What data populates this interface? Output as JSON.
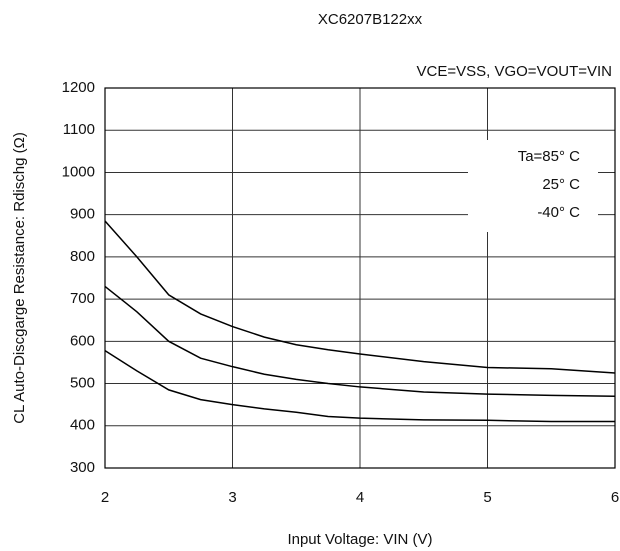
{
  "chart_data": {
    "type": "line",
    "title": "XC6207B122xx",
    "subtitle": "VCE=VSS, VGO=VOUT=VIN",
    "x_label": "Input Voltage: VIN (V)",
    "y_label": "CL Auto-Discgarge Resistance: Rdischg (Ω)",
    "x": [
      2,
      2.25,
      2.5,
      2.75,
      3,
      3.25,
      3.5,
      3.75,
      4,
      4.5,
      5,
      5.5,
      6
    ],
    "series": [
      {
        "name": "Ta=85° C",
        "color": "#000000",
        "values": [
          885,
          800,
          710,
          665,
          635,
          610,
          592,
          580,
          570,
          552,
          538,
          535,
          525
        ]
      },
      {
        "name": "25° C",
        "color": "#000000",
        "values": [
          730,
          670,
          600,
          560,
          540,
          522,
          510,
          500,
          492,
          480,
          475,
          472,
          470
        ]
      },
      {
        "name": "-40° C",
        "color": "#000000",
        "values": [
          578,
          530,
          485,
          462,
          450,
          440,
          432,
          422,
          418,
          414,
          413,
          410,
          410
        ]
      }
    ],
    "xlim": [
      2,
      6
    ],
    "xticks": [
      2,
      3,
      4,
      5,
      6
    ],
    "ylim": [
      300,
      1200
    ],
    "yticks": [
      300,
      400,
      500,
      600,
      700,
      800,
      900,
      1000,
      1100,
      1200
    ],
    "grid": true
  }
}
